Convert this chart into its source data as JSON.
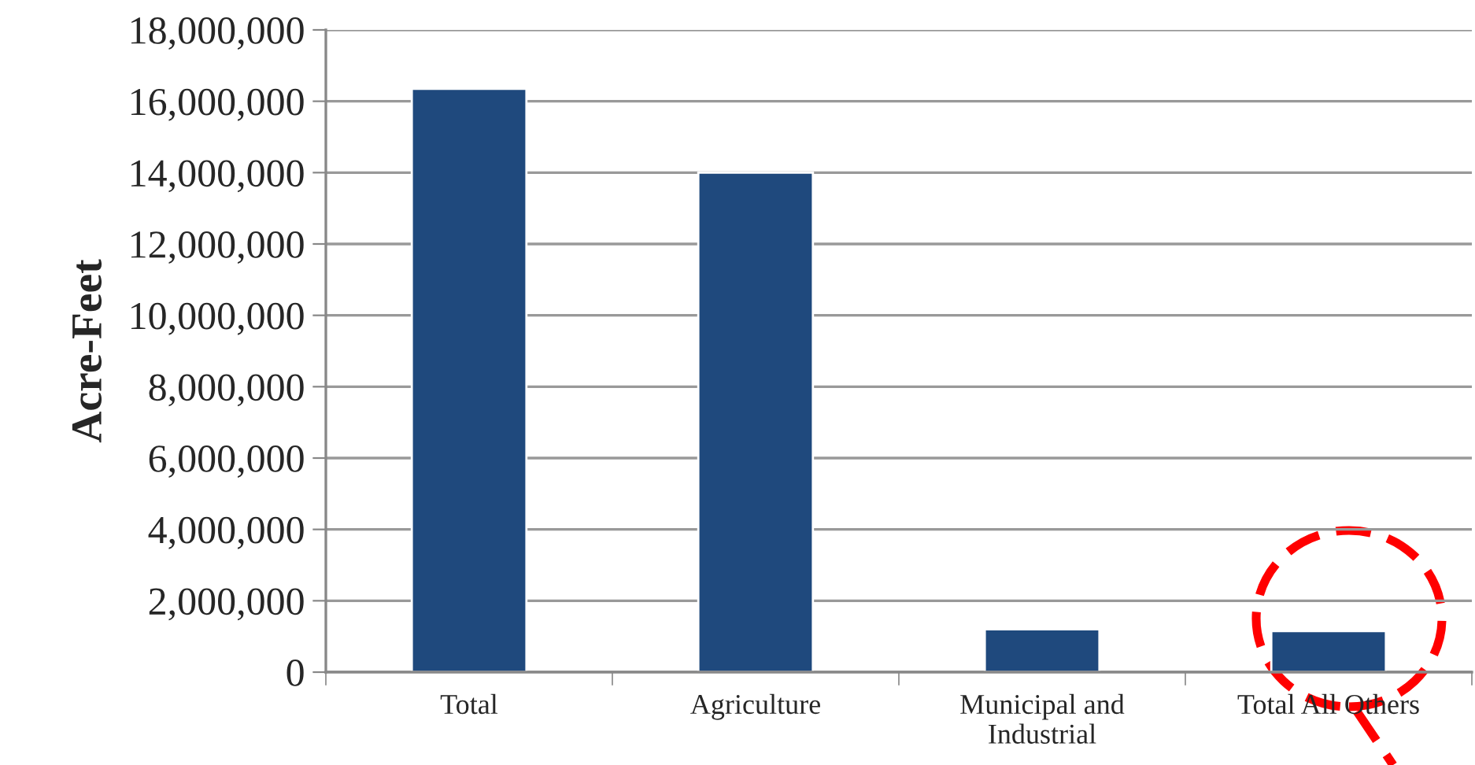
{
  "chart_data": {
    "type": "bar",
    "ylabel": "Acre-Feet",
    "categories": [
      "Total",
      "Agriculture",
      "Municipal and\nIndustrial",
      "Total All Others"
    ],
    "values": [
      16350000,
      14000000,
      1200000,
      1150000
    ],
    "color": "#1f497d",
    "ylim": [
      0,
      18000000
    ],
    "yticks": [
      {
        "value": 0,
        "label": "0"
      },
      {
        "value": 2000000,
        "label": "2,000,000"
      },
      {
        "value": 4000000,
        "label": "4,000,000"
      },
      {
        "value": 6000000,
        "label": "6,000,000"
      },
      {
        "value": 8000000,
        "label": "8,000,000"
      },
      {
        "value": 10000000,
        "label": "10,000,000"
      },
      {
        "value": 12000000,
        "label": "12,000,000"
      },
      {
        "value": 14000000,
        "label": "14,000,000"
      },
      {
        "value": 16000000,
        "label": "16,000,000"
      },
      {
        "value": 18000000,
        "label": "18,000,000"
      }
    ],
    "grid": "y"
  }
}
